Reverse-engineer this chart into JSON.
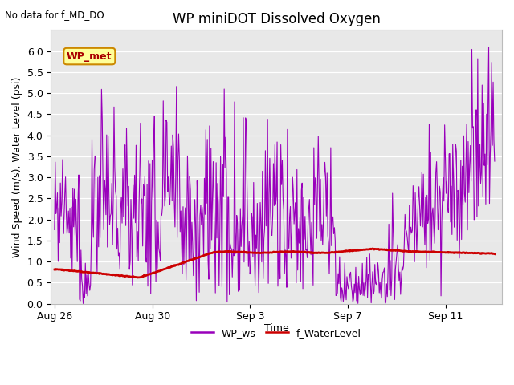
{
  "title": "WP miniDOT Dissolved Oxygen",
  "no_data_label": "No data for f_MD_DO",
  "ylabel": "Wind Speed (m/s), Water Level (psi)",
  "xlabel": "Time",
  "ylim": [
    0.0,
    6.3
  ],
  "bg_color": "#e8e8e8",
  "legend_label1": "WP_ws",
  "legend_label2": "f_WaterLevel",
  "legend_color1": "#9900bb",
  "legend_color2": "#cc0000",
  "wp_met_box_text": "WP_met",
  "wp_met_box_facecolor": "#ffff99",
  "wp_met_box_edgecolor": "#cc8800",
  "ws_color": "#9900bb",
  "wl_color": "#cc0000",
  "xtick_days": [
    0,
    4,
    8,
    12,
    16
  ],
  "xtick_labels": [
    "Aug 26",
    "Aug 30",
    "Sep 3",
    "Sep 7",
    "Sep 11"
  ],
  "yticks": [
    0.0,
    0.5,
    1.0,
    1.5,
    2.0,
    2.5,
    3.0,
    3.5,
    4.0,
    4.5,
    5.0,
    5.5,
    6.0
  ],
  "title_fontsize": 12,
  "axis_fontsize": 9,
  "legend_fontsize": 9
}
